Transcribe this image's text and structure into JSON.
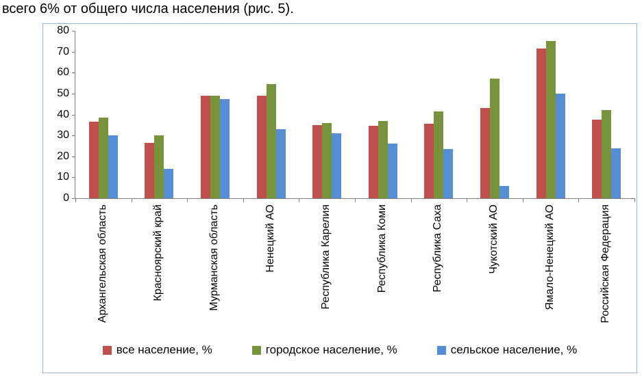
{
  "caption": "всего 6% от общего числа населения (рис. 5).",
  "chart_data": {
    "type": "bar",
    "title": "",
    "xlabel": "",
    "ylabel": "",
    "ylim": [
      0,
      80
    ],
    "ytick_step": 10,
    "grid": false,
    "legend_position": "bottom",
    "categories": [
      "Архангельская область",
      "Красноярский край",
      "Мурманская область",
      "Ненецкий АО",
      "Республика Карелия",
      "Республика Коми",
      "Республика Саха",
      "Чукотский АО",
      "Ямало-Ненецкий АО",
      "Российская Федерация"
    ],
    "series": [
      {
        "name": "все население, %",
        "color": "#C0504D",
        "values": [
          36.5,
          26.5,
          49,
          49,
          35,
          34.5,
          35.5,
          43,
          71.5,
          37.5
        ]
      },
      {
        "name": "городское население, %",
        "color": "#77933C",
        "values": [
          38.5,
          30,
          49,
          54.5,
          36,
          37,
          41.5,
          57,
          75,
          42
        ]
      },
      {
        "name": "сельское население, %",
        "color": "#558ED5",
        "values": [
          30,
          14,
          47.5,
          33,
          31,
          26,
          23.5,
          6,
          50,
          24
        ]
      }
    ]
  }
}
